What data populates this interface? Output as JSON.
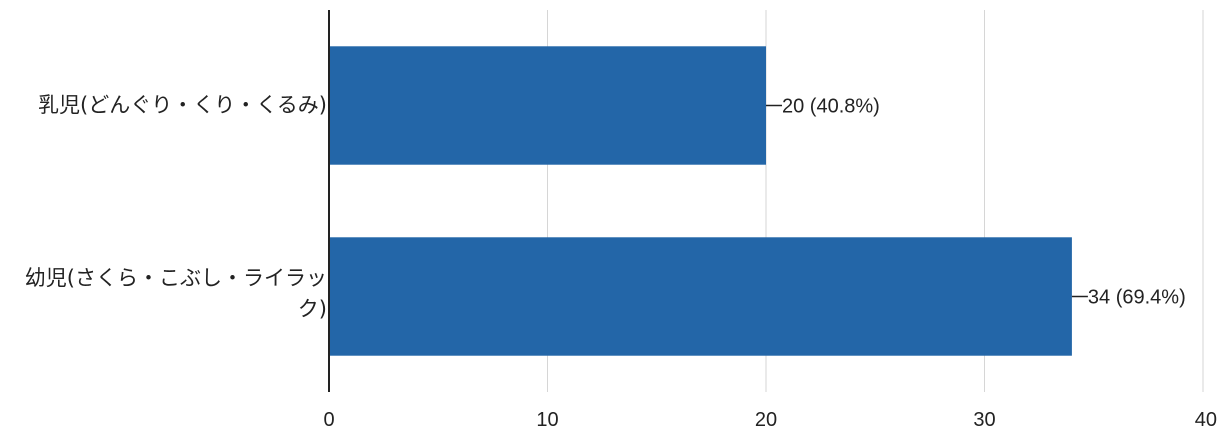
{
  "chart_data": {
    "type": "bar",
    "orientation": "horizontal",
    "categories": [
      "乳児(どんぐり・くり・くるみ)",
      "幼児(さくら・こぶし・ライラック)"
    ],
    "values": [
      20,
      34
    ],
    "data_labels": [
      "20 (40.8%)",
      "34 (69.4%)"
    ],
    "x_ticks": [
      "0",
      "10",
      "20",
      "30",
      "40"
    ],
    "xlim": [
      0,
      40
    ],
    "grid": true,
    "bar_color": "#2366a8",
    "title": "",
    "xlabel": "",
    "ylabel": ""
  }
}
